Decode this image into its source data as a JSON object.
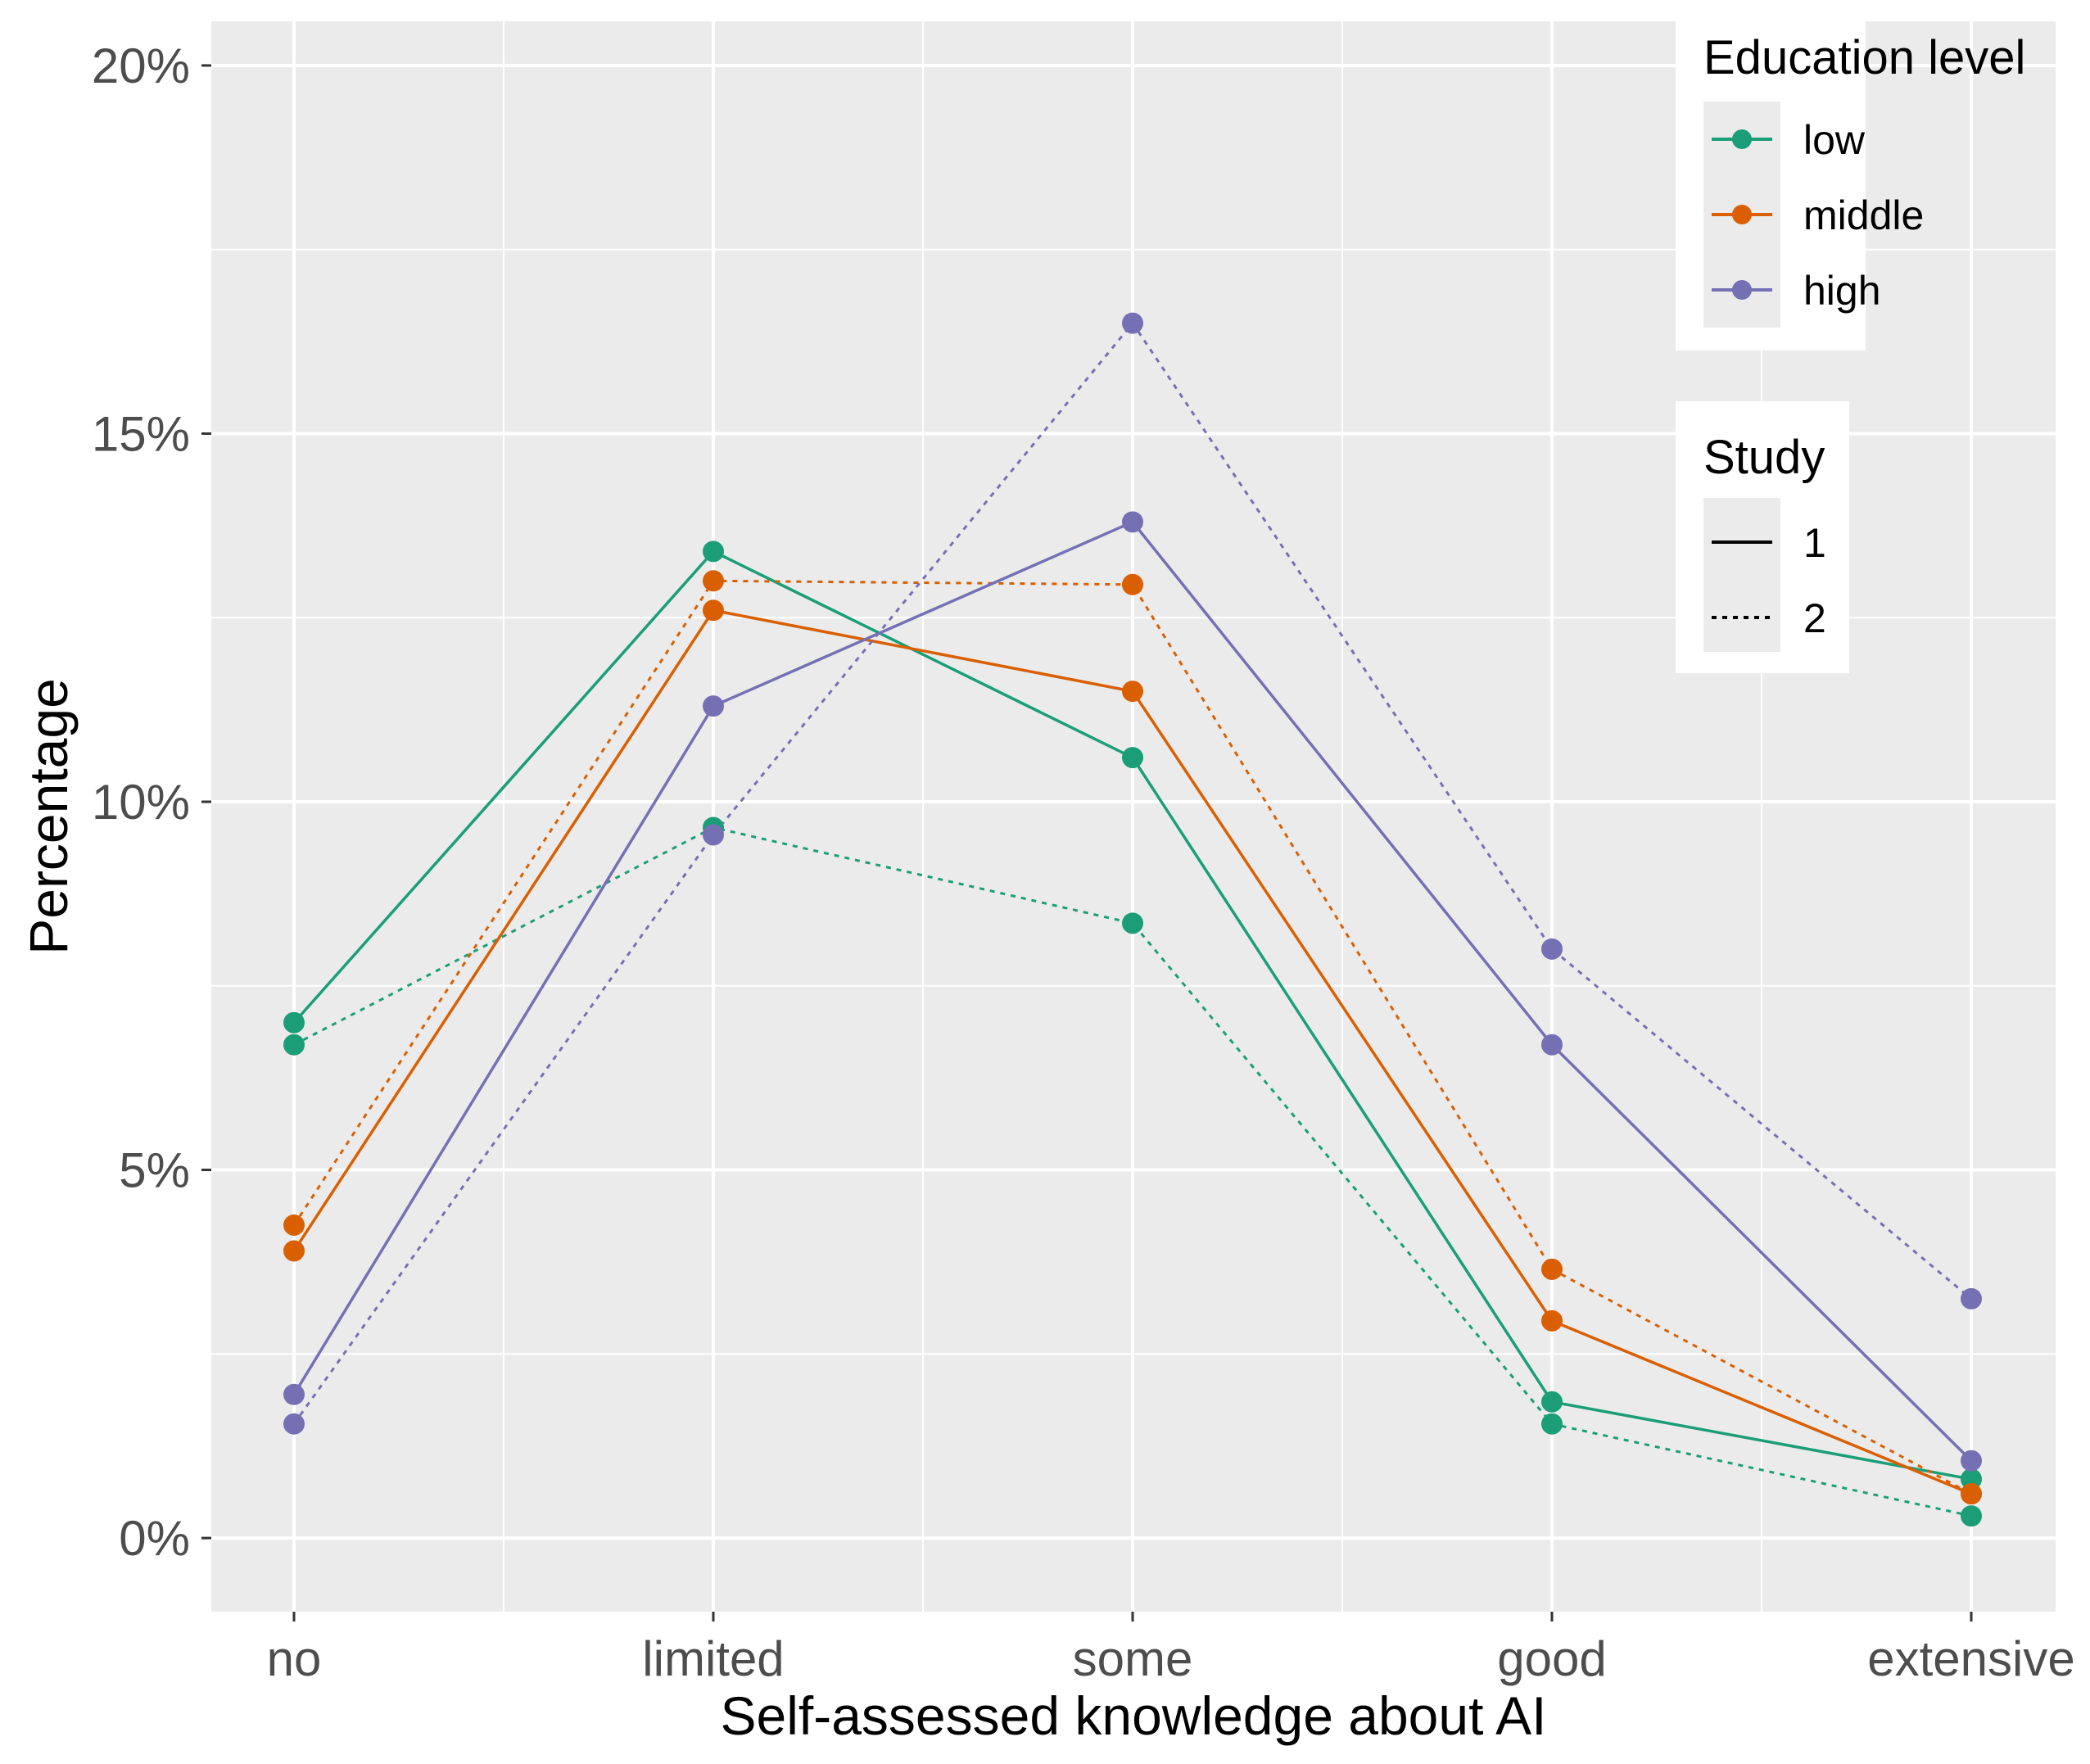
{
  "chart_data": {
    "type": "line",
    "title": "",
    "xlabel": "Self-assessed knowledge about AI",
    "ylabel": "Percentage",
    "categories": [
      "no",
      "limited",
      "some",
      "good",
      "extensive"
    ],
    "ylim": [
      -1.0,
      20.6
    ],
    "yticks": [
      0,
      5,
      10,
      15,
      20
    ],
    "ytick_labels": [
      "0%",
      "5%",
      "10%",
      "15%",
      "20%"
    ],
    "grid": true,
    "series": [
      {
        "name": "low, Study 1",
        "education": "low",
        "study": "1",
        "values": [
          7.0,
          13.4,
          10.6,
          1.85,
          0.8
        ]
      },
      {
        "name": "low, Study 2",
        "education": "low",
        "study": "2",
        "values": [
          6.7,
          9.65,
          8.35,
          1.55,
          0.3
        ]
      },
      {
        "name": "middle, Study 1",
        "education": "middle",
        "study": "1",
        "values": [
          3.9,
          12.6,
          11.5,
          2.95,
          0.6
        ]
      },
      {
        "name": "middle, Study 2",
        "education": "middle",
        "study": "2",
        "values": [
          4.25,
          13.0,
          12.95,
          3.65,
          0.6
        ]
      },
      {
        "name": "high, Study 1",
        "education": "high",
        "study": "1",
        "values": [
          1.95,
          11.3,
          13.8,
          6.7,
          1.05
        ]
      },
      {
        "name": "high, Study 2",
        "education": "high",
        "study": "2",
        "values": [
          1.55,
          9.55,
          16.5,
          8.0,
          3.25
        ]
      }
    ],
    "legend": {
      "position": "top-right",
      "education_title": "Education level",
      "education_items": [
        {
          "label": "low",
          "color": "#1b9e77"
        },
        {
          "label": "middle",
          "color": "#d95f02"
        },
        {
          "label": "high",
          "color": "#7570b3"
        }
      ],
      "study_title": "Study",
      "study_items": [
        {
          "label": "1",
          "style": "solid"
        },
        {
          "label": "2",
          "style": "dotted"
        }
      ]
    }
  },
  "colors": {
    "low": "#1b9e77",
    "middle": "#d95f02",
    "high": "#7570b3",
    "panel": "#ebebeb",
    "grid": "#ffffff"
  }
}
